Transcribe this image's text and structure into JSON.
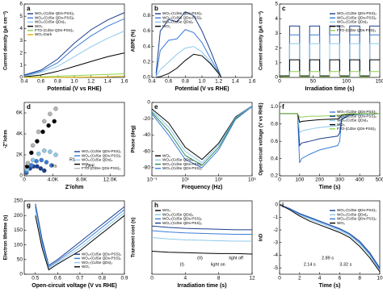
{
  "chart_data": [
    {
      "type": "line",
      "label": "a",
      "xlabel": "Potential (V vs RHE)",
      "ylabel": "Current density (µA cm⁻²)",
      "legend": "upper left",
      "x": [
        0.4,
        0.6,
        0.8,
        1.0,
        1.2,
        1.4,
        1.6
      ],
      "xlim": [
        0.4,
        1.6
      ],
      "xticks": [
        0.4,
        0.6,
        0.8,
        {
          "value": 1.0,
          "label": "1.0"
        },
        1.2,
        1.4,
        1.6
      ],
      "ylim": [
        0,
        6
      ],
      "yticks": [
        0,
        1,
        2,
        3,
        4,
        5,
        6
      ],
      "series": [
        {
          "name": "WO₃-(CdSe QDs-PSS)₃",
          "color": "#1b3f8f",
          "values": [
            0.2,
            0.6,
            1.5,
            2.8,
            3.9,
            4.7,
            5.3
          ]
        },
        {
          "name": "WO₃-(CdSe QDs-PSS)₂",
          "color": "#3b7dd8",
          "values": [
            0.15,
            0.5,
            1.2,
            2.4,
            3.4,
            4.2,
            4.8
          ]
        },
        {
          "name": "WO₃-(CdSe QDs)₃",
          "color": "#8ec9ea",
          "values": [
            0.1,
            0.4,
            0.9,
            1.7,
            2.5,
            3.2,
            3.8
          ]
        },
        {
          "name": "WO₃",
          "color": "#000000",
          "values": [
            0.05,
            0.2,
            0.5,
            0.9,
            1.3,
            1.7,
            2.0
          ]
        },
        {
          "name": "FTO-(CdSe QDs-PSS)₃",
          "color": "#8fd14f",
          "values": [
            0.02,
            0.05,
            0.1,
            0.15,
            0.2,
            0.25,
            0.3
          ]
        },
        {
          "name": "WO₃-Dark",
          "color": "#e0b000",
          "values": [
            0,
            0,
            0.01,
            0.02,
            0.03,
            0.05,
            0.1
          ]
        }
      ]
    },
    {
      "type": "line",
      "label": "b",
      "xlabel": "Potential (V vs RHE)",
      "ylabel": "ABPE (%)",
      "legend": "upper left",
      "x": [
        0.45,
        0.5,
        0.6,
        0.7,
        0.8,
        0.9,
        1.0,
        1.1,
        1.2,
        1.23
      ],
      "xlim": [
        0.4,
        1.6
      ],
      "xticks": [
        0.4,
        0.6,
        0.8,
        {
          "value": 1.0,
          "label": "1.0"
        },
        1.2,
        1.4,
        1.6
      ],
      "ylim": [
        0,
        0.95
      ],
      "yticks": [
        {
          "value": 0,
          "label": "0.0"
        },
        0.2,
        0.4,
        0.6,
        0.8
      ],
      "series": [
        {
          "name": "WO₃-(CdSe QDs-PSS)₃",
          "color": "#1b3f8f",
          "values": [
            0.05,
            0.6,
            0.75,
            0.72,
            0.85,
            0.8,
            0.6,
            0.35,
            0.08,
            0
          ]
        },
        {
          "name": "WO₃-(CdSe QDs-PSS)₂",
          "color": "#3b7dd8",
          "values": [
            0.02,
            0.35,
            0.48,
            0.5,
            0.62,
            0.58,
            0.45,
            0.25,
            0.06,
            0
          ]
        },
        {
          "name": "WO₃-(CdSe QDs)₃",
          "color": "#8ec9ea",
          "values": [
            0.01,
            0.1,
            0.2,
            0.3,
            0.38,
            0.4,
            0.33,
            0.2,
            0.05,
            0
          ]
        },
        {
          "name": "WO₃",
          "color": "#000000",
          "values": [
            0,
            0.01,
            0.05,
            0.12,
            0.22,
            0.3,
            0.28,
            0.18,
            0.05,
            0
          ]
        }
      ]
    },
    {
      "type": "line",
      "label": "c",
      "xlabel": "Irradiation time (s)",
      "ylabel": "Current density (µA cm⁻²)",
      "legend": "upper right",
      "x": [
        0,
        15,
        15,
        30,
        30,
        45,
        45,
        60,
        60,
        75,
        75,
        90,
        90,
        105,
        105,
        120,
        120,
        135,
        135,
        150
      ],
      "xlim": [
        0,
        150
      ],
      "xticks": [
        0,
        50,
        100,
        150
      ],
      "ylim": [
        0,
        5
      ],
      "yticks": [
        0,
        1,
        2,
        3,
        4,
        5
      ],
      "series": [
        {
          "name": "WO₃-(CdSe QDs-PSS)₃",
          "color": "#1b3f8f",
          "values": [
            0.1,
            0.1,
            3.5,
            3.5,
            0.1,
            0.1,
            3.5,
            3.5,
            0.1,
            0.1,
            3.5,
            3.5,
            0.1,
            0.1,
            3.5,
            3.5,
            0.1,
            0.1,
            3.5,
            3.5
          ]
        },
        {
          "name": "WO₃-(CdSe QDs-PSS)₂",
          "color": "#3b7dd8",
          "values": [
            0.1,
            0.1,
            2.9,
            2.9,
            0.1,
            0.1,
            2.9,
            2.9,
            0.1,
            0.1,
            2.9,
            2.9,
            0.1,
            0.1,
            2.9,
            2.9,
            0.1,
            0.1,
            2.9,
            2.9
          ]
        },
        {
          "name": "WO₃-(CdSe QDs)₃",
          "color": "#8ec9ea",
          "values": [
            0.1,
            0.1,
            2.3,
            2.3,
            0.1,
            0.1,
            2.3,
            2.3,
            0.1,
            0.1,
            2.3,
            2.3,
            0.1,
            0.1,
            2.3,
            2.3,
            0.1,
            0.1,
            2.3,
            2.3
          ]
        },
        {
          "name": "WO₃",
          "color": "#000000",
          "values": [
            0.1,
            0.1,
            1.2,
            1.2,
            0.1,
            0.1,
            1.2,
            1.2,
            0.1,
            0.1,
            1.2,
            1.2,
            0.1,
            0.1,
            1.2,
            1.2,
            0.1,
            0.1,
            1.2,
            1.2
          ]
        },
        {
          "name": "FTO-(CdSe QDs-PSS)₃",
          "color": "#8fd14f",
          "values": [
            0.05,
            0.05,
            0.4,
            0.4,
            0.05,
            0.05,
            0.4,
            0.4,
            0.05,
            0.05,
            0.4,
            0.4,
            0.05,
            0.05,
            0.4,
            0.4,
            0.05,
            0.05,
            0.4,
            0.4
          ]
        }
      ]
    },
    {
      "type": "scatter",
      "label": "d",
      "xlabel": "Z'/ohm",
      "ylabel": "-Z''/ohm",
      "legend": "lower right",
      "annotations": [
        "Rs",
        "R1",
        "CPE"
      ],
      "xlim": [
        0,
        14000
      ],
      "xticks": [
        0,
        {
          "value": 4000,
          "label": "4.0K"
        },
        {
          "value": 8000,
          "label": "8.0K"
        },
        {
          "value": 12000,
          "label": "12.0K"
        }
      ],
      "ylim": [
        0,
        7000
      ],
      "yticks": [
        0,
        {
          "value": 2000,
          "label": "2K"
        },
        {
          "value": 4000,
          "label": "4K"
        },
        {
          "value": 6000,
          "label": "6K"
        }
      ],
      "series": [
        {
          "name": "WO₃-(CdSe QDs-PSS)₃",
          "color": "#1b3f8f",
          "x": [
            300,
            800,
            1300,
            1800,
            2300,
            2800
          ],
          "values": [
            300,
            700,
            900,
            900,
            700,
            500
          ]
        },
        {
          "name": "WO₃-(CdSe QDs-PSS)₂",
          "color": "#3b7dd8",
          "x": [
            300,
            1000,
            1700,
            2400,
            3100,
            3800
          ],
          "values": [
            400,
            1000,
            1400,
            1500,
            1300,
            1000
          ]
        },
        {
          "name": "WO₃-(CdSe QDs)₃",
          "color": "#8ec9ea",
          "x": [
            400,
            1200,
            2000,
            2800,
            3600,
            4400
          ],
          "values": [
            600,
            1500,
            2100,
            2400,
            2300,
            2000
          ]
        },
        {
          "name": "WO₃",
          "color": "#000000",
          "x": [
            400,
            1000,
            1800,
            2600,
            3400,
            4200
          ],
          "values": [
            900,
            2200,
            3300,
            4200,
            4800,
            5200
          ]
        },
        {
          "name": "FTO-(CdSe QDs-PSS)₃",
          "color": "#b5b5b5",
          "x": [
            500,
            1200,
            2000,
            2800,
            3600,
            4400
          ],
          "values": [
            1200,
            2900,
            4200,
            5200,
            5900,
            6400
          ]
        }
      ]
    },
    {
      "type": "line",
      "label": "e",
      "xlabel": "Frequency (Hz)",
      "ylabel": "Phase (deg)",
      "legend": "lower left",
      "log_x": true,
      "x": [
        0.1,
        1,
        10,
        100,
        1000,
        10000,
        100000
      ],
      "xlim": [
        0.1,
        100000
      ],
      "xticks": [
        {
          "value": 0.1,
          "label": "10⁻¹"
        },
        {
          "value": 10,
          "label": "10¹"
        },
        {
          "value": 1000,
          "label": "10³"
        },
        {
          "value": 100000,
          "label": "10⁵"
        }
      ],
      "ylim": [
        -90,
        0
      ],
      "yticks": [
        -80,
        -60,
        -40,
        -20,
        0
      ],
      "series": [
        {
          "name": "WO₃",
          "color": "#000000",
          "values": [
            -8,
            -25,
            -55,
            -70,
            -50,
            -18,
            -4
          ]
        },
        {
          "name": "WO₃-(CdSe QDs)₃",
          "color": "#8ec9ea",
          "values": [
            -10,
            -30,
            -60,
            -74,
            -52,
            -19,
            -4
          ]
        },
        {
          "name": "WO₃-(CdSe QDs-PSS)₂",
          "color": "#2e8b57",
          "values": [
            -12,
            -35,
            -65,
            -77,
            -55,
            -20,
            -5
          ]
        },
        {
          "name": "WO₃-(CdSe QDs-PSS)₃",
          "color": "#3b7dd8",
          "values": [
            -14,
            -40,
            -70,
            -80,
            -58,
            -21,
            -5
          ]
        }
      ]
    },
    {
      "type": "line",
      "label": "f",
      "xlabel": "Time (s)",
      "ylabel": "Open-circuit voltage (V vs RHE)",
      "legend": "upper right",
      "x": [
        0,
        90,
        100,
        110,
        150,
        200,
        290,
        300,
        310,
        350,
        400,
        500
      ],
      "xlim": [
        0,
        500
      ],
      "xticks": [
        0,
        100,
        200,
        300,
        400,
        500
      ],
      "ylim": [
        0.2,
        1.05
      ],
      "yticks": [
        0.2,
        0.4,
        0.6,
        0.8,
        {
          "value": 1.0,
          "label": "1.0"
        }
      ],
      "series": [
        {
          "name": "WO₃-(CdSe QDs-PSS)₃",
          "color": "#3b7dd8",
          "values": [
            0.92,
            0.92,
            0.35,
            0.4,
            0.45,
            0.5,
            0.55,
            0.6,
            0.85,
            0.9,
            0.91,
            0.92
          ]
        },
        {
          "name": "WO₃-(CdSe QDs-PSS)₂",
          "color": "#1b3f8f",
          "values": [
            0.92,
            0.92,
            0.55,
            0.58,
            0.6,
            0.63,
            0.66,
            0.7,
            0.86,
            0.9,
            0.91,
            0.92
          ]
        },
        {
          "name": "WO₃-(CdSe QDs)₃",
          "color": "#8ec9ea",
          "values": [
            0.92,
            0.92,
            0.7,
            0.72,
            0.74,
            0.76,
            0.78,
            0.8,
            0.88,
            0.9,
            0.91,
            0.92
          ]
        },
        {
          "name": "WO₃",
          "color": "#000000",
          "values": [
            0.92,
            0.92,
            0.82,
            0.83,
            0.84,
            0.85,
            0.86,
            0.87,
            0.9,
            0.91,
            0.92,
            0.92
          ]
        },
        {
          "name": "FTO-(CdSe QDs-PSS)₃",
          "color": "#8fd14f",
          "values": [
            0.92,
            0.92,
            0.88,
            0.88,
            0.89,
            0.89,
            0.9,
            0.9,
            0.91,
            0.92,
            0.92,
            0.92
          ]
        }
      ]
    },
    {
      "type": "line",
      "label": "g",
      "xlabel": "Open-circuit voltage (V vs RHE)",
      "ylabel": "Electron lifetime (s)",
      "legend": "lower right",
      "x": [
        0.5,
        0.53,
        0.56,
        0.6,
        0.7,
        0.8,
        0.85,
        0.9
      ],
      "xlim": [
        0.45,
        0.9
      ],
      "xticks": [
        0.5,
        0.6,
        0.7,
        0.8,
        0.9
      ],
      "ylim": [
        0,
        250
      ],
      "yticks": [
        0,
        50,
        100,
        150,
        200,
        250
      ],
      "series": [
        {
          "name": "WO₃-(CdSe QDs-PSS)₃",
          "color": "#1b3f8f",
          "values": [
            240,
            120,
            30,
            50,
            110,
            170,
            200,
            230
          ]
        },
        {
          "name": "WO₃-(CdSe QDs-PSS)₂",
          "color": "#3b7dd8",
          "values": [
            230,
            110,
            25,
            45,
            100,
            160,
            190,
            220
          ]
        },
        {
          "name": "WO₃-(CdSe QDs)₃",
          "color": "#8ec9ea",
          "values": [
            220,
            100,
            20,
            40,
            90,
            150,
            180,
            210
          ]
        },
        {
          "name": "WO₃",
          "color": "#000000",
          "values": [
            200,
            90,
            15,
            35,
            80,
            140,
            170,
            200
          ]
        }
      ]
    },
    {
      "type": "line",
      "label": "h",
      "xlabel": "Irradiation time (s)",
      "ylabel": "Transient cost (s)",
      "legend": "upper left",
      "annotations": [
        "(I)",
        "(II)",
        "light on",
        "light off"
      ],
      "x": [
        0,
        2,
        4,
        6,
        8,
        10,
        12
      ],
      "xlim": [
        0,
        12
      ],
      "xticks": [
        0,
        4,
        8,
        12
      ],
      "ylim": [
        0,
        1.6
      ],
      "yticks": [],
      "series": [
        {
          "name": "WO₃",
          "color": "#000000",
          "values": [
            0.5,
            0.48,
            0.47,
            0.46,
            0.45,
            0.45,
            0.44
          ]
        },
        {
          "name": "WO₃-(CdSe QDs)₃",
          "color": "#8ec9ea",
          "values": [
            0.8,
            0.77,
            0.75,
            0.74,
            0.73,
            0.72,
            0.72
          ]
        },
        {
          "name": "WO₃-(CdSe QDs-PSS)₂",
          "color": "#3b7dd8",
          "values": [
            0.95,
            0.92,
            0.9,
            0.89,
            0.88,
            0.87,
            0.87
          ]
        },
        {
          "name": "WO₃-(CdSe QDs-PSS)₃",
          "color": "#1b3f8f",
          "values": [
            1.05,
            1.02,
            1.0,
            0.99,
            0.98,
            0.97,
            0.97
          ]
        }
      ]
    },
    {
      "type": "line",
      "label": "i",
      "xlabel": "Time (s)",
      "ylabel": "lnD",
      "legend": "upper right",
      "annotations": [
        "2.14 s",
        "2.89 s",
        "3.32 s"
      ],
      "x": [
        0,
        1,
        2,
        3,
        4,
        5,
        6,
        7,
        8,
        9,
        10
      ],
      "xlim": [
        0,
        10
      ],
      "xticks": [
        0,
        2,
        4,
        6,
        8,
        10
      ],
      "ylim": [
        -5.5,
        0.3
      ],
      "yticks": [
        -5,
        -4,
        -3,
        -2,
        -1,
        0
      ],
      "series": [
        {
          "name": "WO₃-(CdSe QDs-PSS)₃",
          "color": "#1b3f8f",
          "values": [
            0,
            -0.3,
            -0.7,
            -1.0,
            -1.3,
            -1.6,
            -1.9,
            -2.3,
            -2.9,
            -3.8,
            -5.0
          ]
        },
        {
          "name": "WO₃-(CdSe QDs)₃",
          "color": "#8ec9ea",
          "values": [
            0,
            -0.35,
            -0.8,
            -1.15,
            -1.45,
            -1.75,
            -2.05,
            -2.45,
            -3.1,
            -4.0,
            -5.2
          ]
        },
        {
          "name": "WO₃-(CdSe QDs-PSS)₂",
          "color": "#3b7dd8",
          "values": [
            0,
            -0.32,
            -0.75,
            -1.05,
            -1.35,
            -1.65,
            -1.95,
            -2.35,
            -3.0,
            -3.9,
            -5.1
          ]
        },
        {
          "name": "WO₃",
          "color": "#000000",
          "values": [
            0,
            -0.4,
            -0.9,
            -1.3,
            -1.6,
            -1.9,
            -2.2,
            -2.6,
            -3.3,
            -4.2,
            -5.3
          ]
        }
      ]
    }
  ]
}
